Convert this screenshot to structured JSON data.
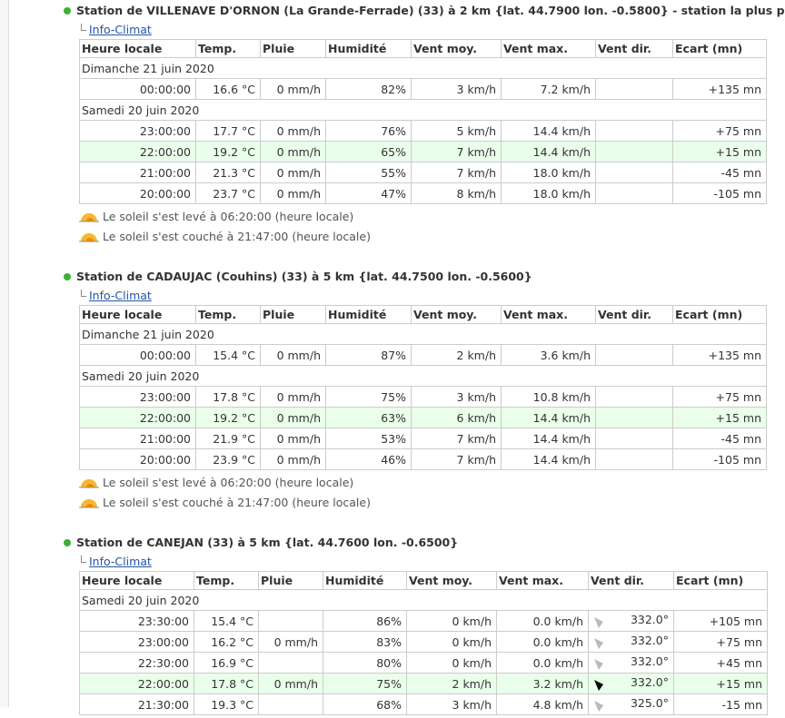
{
  "stations": [
    {
      "title": "Station de VILLENAVE D'ORNON (La Grande-Ferrade) (33) à 2 km {lat. 44.7900 lon. -0.5800} - station la plus proche",
      "source": "Info-Climat",
      "headers": [
        "Heure locale",
        "Temp.",
        "Pluie",
        "Humidité",
        "Vent moy.",
        "Vent max.",
        "Vent dir.",
        "Ecart (mn)"
      ],
      "groups": [
        {
          "date": "Dimanche 21 juin 2020",
          "rows": [
            {
              "cells": [
                "00:00:00",
                "16.6 °C",
                "0 mm/h",
                "82%",
                "3 km/h",
                "7.2 km/h",
                null,
                "+135 mn"
              ]
            }
          ]
        },
        {
          "date": "Samedi 20 juin 2020",
          "rows": [
            {
              "cells": [
                "23:00:00",
                "17.7 °C",
                "0 mm/h",
                "76%",
                "5 km/h",
                "14.4 km/h",
                null,
                "+75 mn"
              ]
            },
            {
              "cells": [
                "22:00:00",
                "19.2 °C",
                "0 mm/h",
                "65%",
                "7 km/h",
                "14.4 km/h",
                null,
                "+15 mn"
              ],
              "highlighted": true
            },
            {
              "cells": [
                "21:00:00",
                "21.3 °C",
                "0 mm/h",
                "55%",
                "7 km/h",
                "18.0 km/h",
                null,
                "-45 mn"
              ]
            },
            {
              "cells": [
                "20:00:00",
                "23.7 °C",
                "0 mm/h",
                "47%",
                "8 km/h",
                "18.0 km/h",
                null,
                "-105 mn"
              ]
            }
          ]
        }
      ],
      "sun": [
        "Le soleil s'est levé à 06:20:00 (heure locale)",
        "Le soleil s'est couché à 21:47:00 (heure locale)"
      ]
    },
    {
      "title": "Station de CADAUJAC (Couhins) (33) à 5 km {lat. 44.7500 lon. -0.5600}",
      "source": "Info-Climat",
      "headers": [
        "Heure locale",
        "Temp.",
        "Pluie",
        "Humidité",
        "Vent moy.",
        "Vent max.",
        "Vent dir.",
        "Ecart (mn)"
      ],
      "groups": [
        {
          "date": "Dimanche 21 juin 2020",
          "rows": [
            {
              "cells": [
                "00:00:00",
                "15.4 °C",
                "0 mm/h",
                "87%",
                "2 km/h",
                "3.6 km/h",
                null,
                "+135 mn"
              ]
            }
          ]
        },
        {
          "date": "Samedi 20 juin 2020",
          "rows": [
            {
              "cells": [
                "23:00:00",
                "17.8 °C",
                "0 mm/h",
                "75%",
                "3 km/h",
                "10.8 km/h",
                null,
                "+75 mn"
              ]
            },
            {
              "cells": [
                "22:00:00",
                "19.2 °C",
                "0 mm/h",
                "63%",
                "6 km/h",
                "14.4 km/h",
                null,
                "+15 mn"
              ],
              "highlighted": true
            },
            {
              "cells": [
                "21:00:00",
                "21.9 °C",
                "0 mm/h",
                "53%",
                "7 km/h",
                "14.4 km/h",
                null,
                "-45 mn"
              ]
            },
            {
              "cells": [
                "20:00:00",
                "23.9 °C",
                "0 mm/h",
                "46%",
                "7 km/h",
                "14.4 km/h",
                null,
                "-105 mn"
              ]
            }
          ]
        }
      ],
      "sun": [
        "Le soleil s'est levé à 06:20:00 (heure locale)",
        "Le soleil s'est couché à 21:47:00 (heure locale)"
      ]
    },
    {
      "title": "Station de CANEJAN (33) à 5 km {lat. 44.7600 lon. -0.6500}",
      "source": "Info-Climat",
      "headers": [
        "Heure locale",
        "Temp.",
        "Pluie",
        "Humidité",
        "Vent moy.",
        "Vent max.",
        "Vent dir.",
        "Ecart (mn)"
      ],
      "groups": [
        {
          "date": "Samedi 20 juin 2020",
          "rows": [
            {
              "cells": [
                "23:30:00",
                "15.4 °C",
                null,
                "86%",
                "0 km/h",
                "0.0 km/h",
                "332.0°",
                "+105 mn"
              ]
            },
            {
              "cells": [
                "23:00:00",
                "16.2 °C",
                "0 mm/h",
                "83%",
                "0 km/h",
                "0.0 km/h",
                "332.0°",
                "+75 mn"
              ]
            },
            {
              "cells": [
                "22:30:00",
                "16.9 °C",
                null,
                "80%",
                "0 km/h",
                "0.0 km/h",
                "332.0°",
                "+45 mn"
              ]
            },
            {
              "cells": [
                "22:00:00",
                "17.8 °C",
                "0 mm/h",
                "75%",
                "2 km/h",
                "3.2 km/h",
                "332.0°",
                "+15 mn"
              ],
              "highlighted": true
            },
            {
              "cells": [
                "21:30:00",
                "19.3 °C",
                null,
                "68%",
                "3 km/h",
                "4.8 km/h",
                "325.0°",
                "-15 mn"
              ]
            }
          ]
        }
      ],
      "sun": []
    }
  ]
}
